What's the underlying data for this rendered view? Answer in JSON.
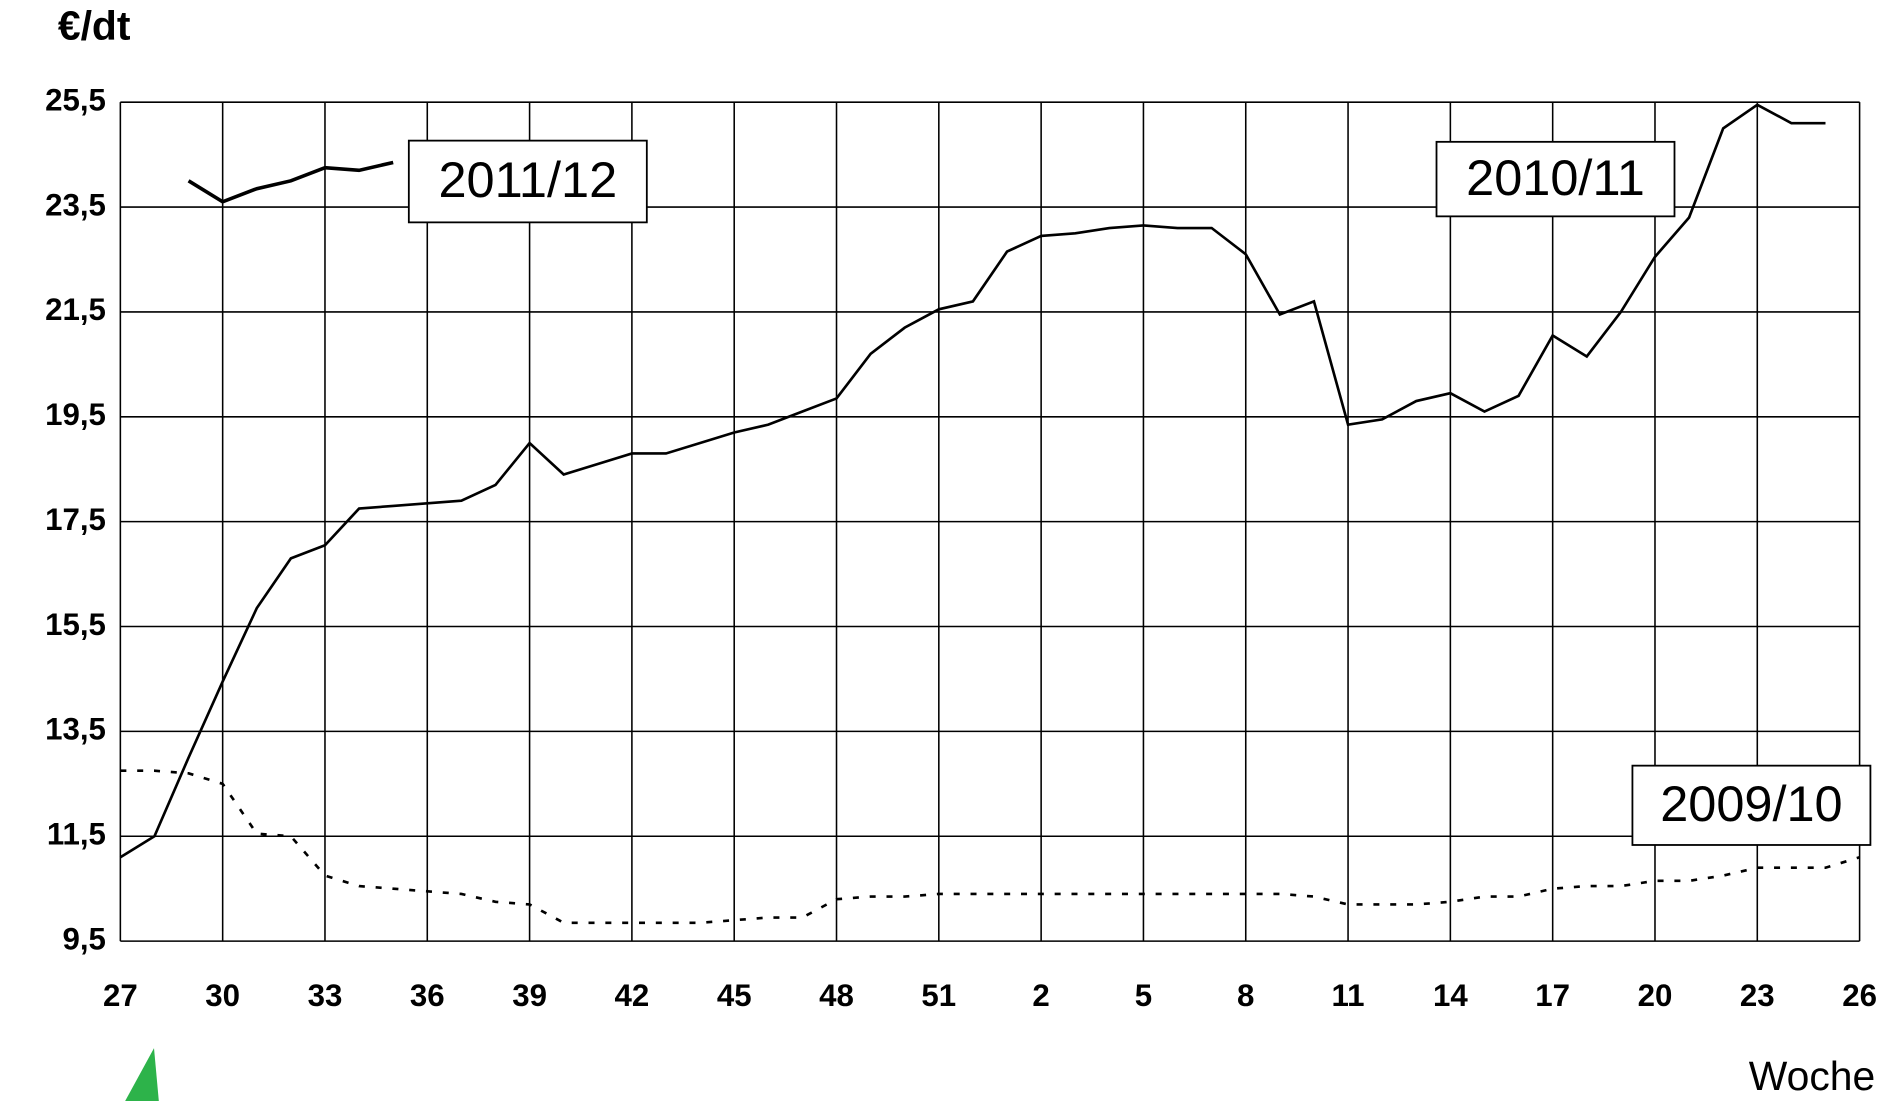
{
  "chart_data": {
    "type": "line",
    "y_label": "€/dt",
    "x_label": "Woche",
    "categories": [
      "27",
      null,
      null,
      "30",
      null,
      null,
      "33",
      null,
      null,
      "36",
      null,
      null,
      "39",
      null,
      null,
      "42",
      null,
      null,
      "45",
      null,
      null,
      "48",
      null,
      null,
      "51",
      null,
      null,
      "2",
      null,
      null,
      "5",
      null,
      null,
      "8",
      null,
      null,
      "11",
      null,
      null,
      "14",
      null,
      null,
      "17",
      null,
      null,
      "20",
      null,
      null,
      "23",
      null,
      null,
      "26"
    ],
    "series": [
      {
        "name": "2011/12",
        "color": "#000000",
        "style": "bold",
        "values": [
          null,
          null,
          24.0,
          23.6,
          23.85,
          24.0,
          24.25,
          24.2,
          24.35,
          null,
          null,
          null,
          null,
          null,
          null,
          null,
          null,
          null,
          null,
          null,
          null,
          null,
          null,
          null,
          null,
          null,
          null,
          null,
          null,
          null,
          null,
          null,
          null,
          null,
          null,
          null,
          null,
          null,
          null,
          null,
          null,
          null,
          null,
          null,
          null,
          null,
          null,
          null,
          null,
          null,
          null,
          null
        ]
      },
      {
        "name": "2010/11",
        "color": "#000000",
        "style": "solid",
        "values": [
          11.1,
          11.5,
          13.0,
          14.45,
          15.85,
          16.8,
          17.05,
          17.75,
          17.8,
          17.85,
          17.9,
          18.2,
          19.0,
          18.4,
          18.6,
          18.8,
          18.8,
          19.0,
          19.2,
          19.35,
          19.6,
          19.85,
          20.7,
          21.2,
          21.55,
          21.7,
          22.65,
          22.95,
          23.0,
          23.1,
          23.15,
          23.1,
          23.1,
          22.6,
          21.45,
          21.7,
          19.35,
          19.45,
          19.8,
          19.95,
          19.6,
          19.9,
          21.05,
          20.65,
          21.5,
          22.55,
          23.3,
          25.0,
          25.45,
          25.1,
          25.1,
          null
        ]
      },
      {
        "name": "2009/10",
        "color": "#000000",
        "style": "dotted",
        "values": [
          12.75,
          12.75,
          12.7,
          12.5,
          11.55,
          11.5,
          10.75,
          10.55,
          10.5,
          10.45,
          10.4,
          10.25,
          10.2,
          9.85,
          9.85,
          9.85,
          9.85,
          9.85,
          9.9,
          9.95,
          9.95,
          10.3,
          10.35,
          10.35,
          10.4,
          10.4,
          10.4,
          10.4,
          10.4,
          10.4,
          10.4,
          10.4,
          10.4,
          10.4,
          10.4,
          10.35,
          10.2,
          10.2,
          10.2,
          10.25,
          10.35,
          10.35,
          10.5,
          10.55,
          10.55,
          10.65,
          10.65,
          10.75,
          10.9,
          10.9,
          10.9,
          11.1
        ]
      }
    ],
    "xlim": [
      0,
      51
    ],
    "ylim": [
      9.5,
      25.5
    ],
    "yticks": [
      {
        "value": 9.5,
        "label": "9,5"
      },
      {
        "value": 11.5,
        "label": "11,5"
      },
      {
        "value": 13.5,
        "label": "13,5"
      },
      {
        "value": 15.5,
        "label": "15,5"
      },
      {
        "value": 17.5,
        "label": "17,5"
      },
      {
        "value": 19.5,
        "label": "19,5"
      },
      {
        "value": 21.5,
        "label": "21,5"
      },
      {
        "value": 23.5,
        "label": "23,5"
      },
      {
        "value": 25.5,
        "label": "25,5"
      }
    ],
    "grid": true
  }
}
